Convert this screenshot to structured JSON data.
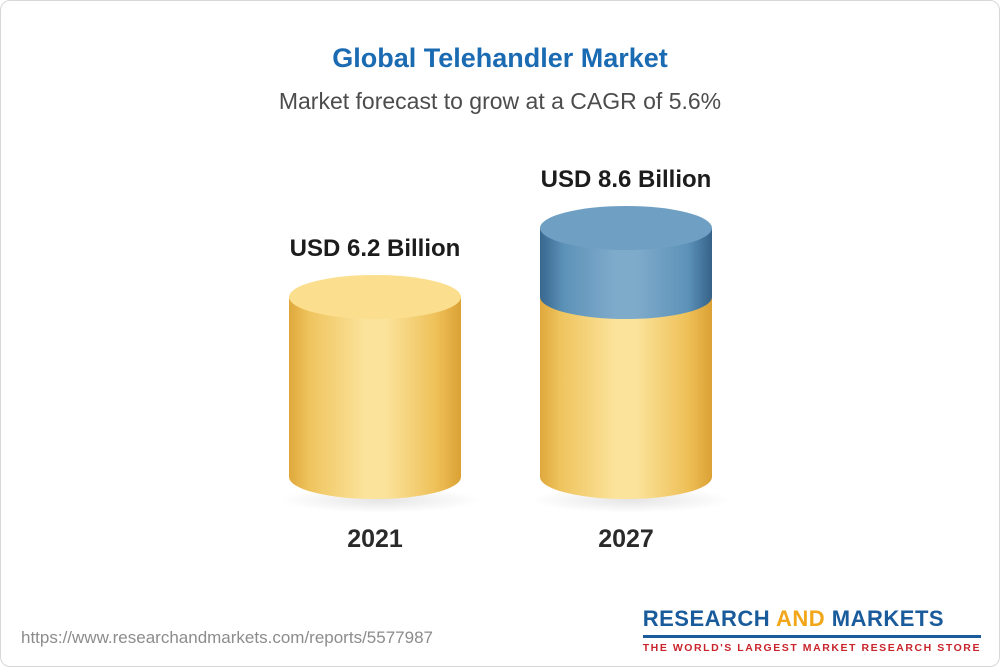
{
  "header": {
    "title": "Global Telehandler Market",
    "subtitle": "Market forecast to grow at a CAGR of 5.6%"
  },
  "chart_data": {
    "type": "bar",
    "variant": "3d-cylinder",
    "title": "Global Telehandler Market",
    "subtitle": "Market forecast to grow at a CAGR of 5.6%",
    "unit": "USD Billion",
    "cagr_percent": 5.6,
    "categories": [
      "2021",
      "2027"
    ],
    "values": [
      6.2,
      8.6
    ],
    "value_labels": [
      "USD 6.2 Billion",
      "USD 8.6 Billion"
    ],
    "colors": {
      "gold": "#f5c95f",
      "blue": "#5e8fb5",
      "title_blue": "#1b6bb3"
    },
    "bars": [
      {
        "category": "2021",
        "total": 6.2,
        "segments": [
          {
            "value": 6.2,
            "color": "gold"
          }
        ]
      },
      {
        "category": "2027",
        "total": 8.6,
        "segments": [
          {
            "value": 2.4,
            "color": "blue"
          },
          {
            "value": 6.2,
            "color": "gold"
          }
        ]
      }
    ]
  },
  "footer": {
    "url": "https://www.researchandmarkets.com/reports/5577987",
    "logo": {
      "word1": "RESEARCH",
      "word2": "AND",
      "word3": "MARKETS",
      "tagline": "THE WORLD'S LARGEST MARKET RESEARCH STORE"
    }
  }
}
